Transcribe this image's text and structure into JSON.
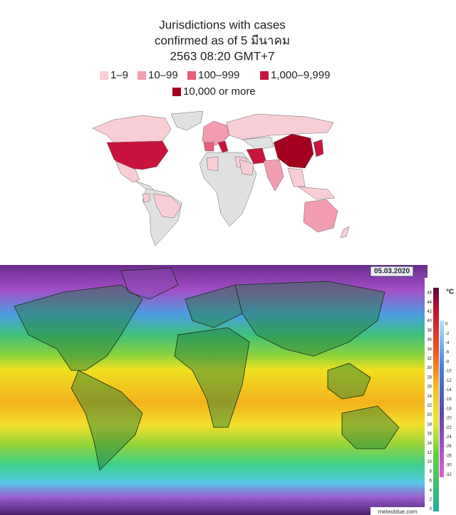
{
  "cases_map": {
    "title_lines": [
      "Jurisdictions with cases",
      "confirmed as of 5 มีนาคม",
      "2563 08:20 GMT+7"
    ],
    "legend": [
      {
        "label": "1–9",
        "color": "#f9cdd6"
      },
      {
        "label": "10–99",
        "color": "#f39cb0"
      },
      {
        "label": "100–999",
        "color": "#e85c7c"
      },
      {
        "label": "1,000–9,999",
        "color": "#c8143c"
      },
      {
        "label": "10,000 or more",
        "color": "#a3001f"
      }
    ]
  },
  "temperature_map": {
    "date": "05.03.2020",
    "unit": "°C",
    "scale_left": [
      "46",
      "44",
      "42",
      "40",
      "38",
      "36",
      "34",
      "32",
      "30",
      "28",
      "26",
      "24",
      "22",
      "20",
      "18",
      "16",
      "14",
      "12",
      "10",
      "8",
      "6",
      "4",
      "2",
      "0"
    ],
    "scale_right": [
      "0",
      "-2",
      "-4",
      "-6",
      "-8",
      "-10",
      "-12",
      "-14",
      "-16",
      "-18",
      "-20",
      "-22",
      "-24",
      "-26",
      "-28",
      "-30",
      "-32"
    ],
    "credit": "meteoblue.com"
  }
}
